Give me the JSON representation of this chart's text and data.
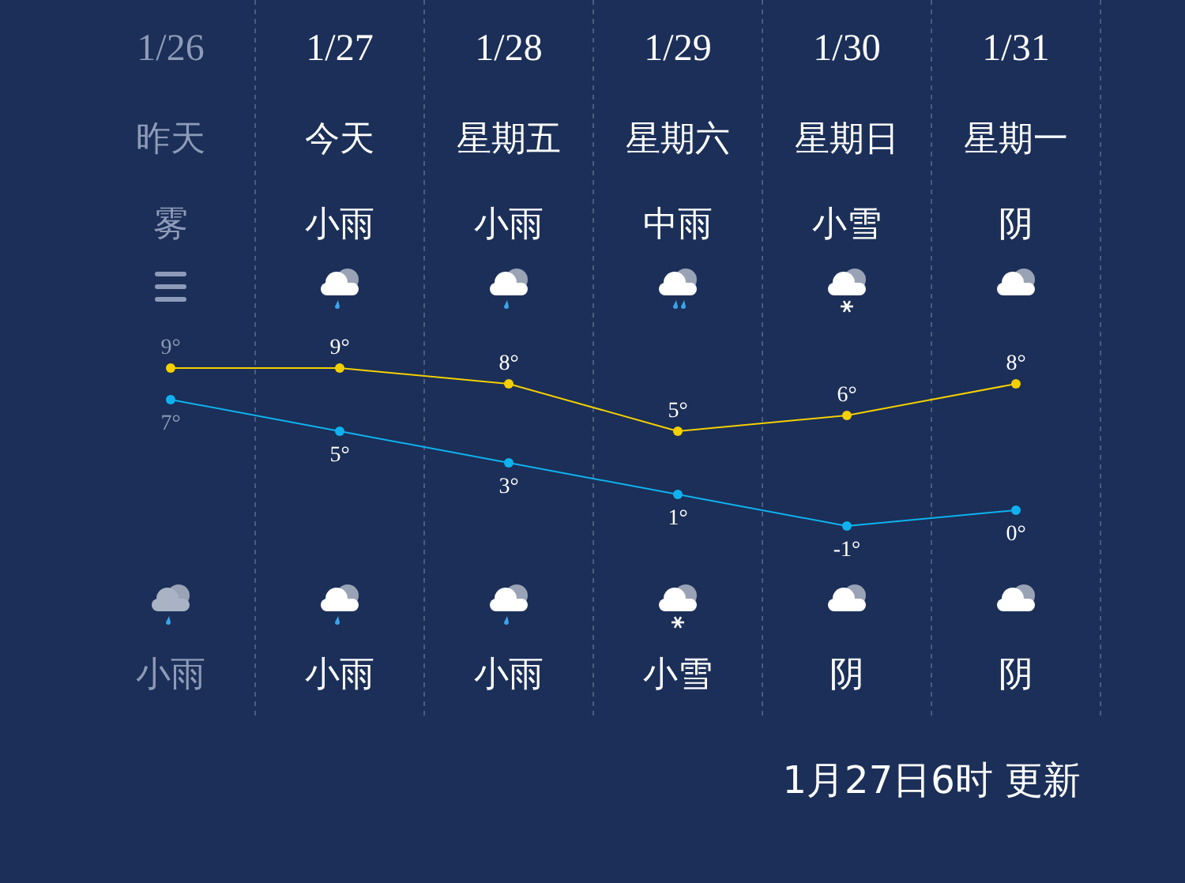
{
  "chart_data": {
    "type": "line",
    "categories": [
      "1/26",
      "1/27",
      "1/28",
      "1/29",
      "1/30",
      "1/31"
    ],
    "series": [
      {
        "color": "#f5d000",
        "values": [
          9,
          9,
          8,
          5,
          6,
          8
        ],
        "value_labels": [
          "9°",
          "9°",
          "8°",
          "5°",
          "6°",
          "8°"
        ]
      },
      {
        "color": "#0fb2ee",
        "values": [
          7,
          5,
          3,
          1,
          -1,
          0
        ],
        "value_labels": [
          "7°",
          "5°",
          "3°",
          "1°",
          "-1°",
          "0°"
        ]
      }
    ],
    "marker": "circle",
    "grid": "x",
    "annotations": [
      "昨天",
      "今天",
      "星期五",
      "星期六",
      "星期日",
      "星期一",
      "雾",
      "小雨",
      "小雨",
      "中雨",
      "小雪",
      "阴",
      "小雨",
      "小雨",
      "小雨",
      "小雪",
      "阴",
      "阴",
      "1月27日6时 更新"
    ]
  }
}
